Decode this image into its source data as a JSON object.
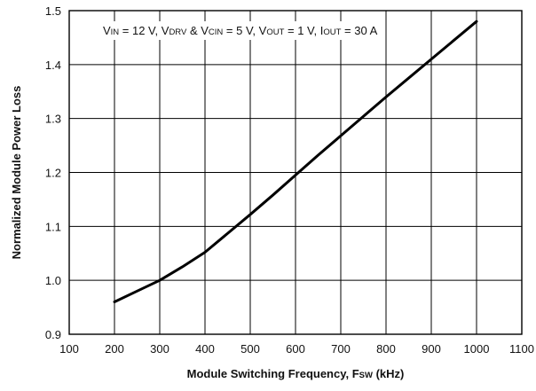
{
  "chart_data": {
    "type": "line",
    "title": "",
    "annotation": {
      "parts": [
        {
          "t": "V",
          "s": "main"
        },
        {
          "t": "IN",
          "s": "sub"
        },
        {
          "t": " = 12 V, ",
          "s": "main"
        },
        {
          "t": "V",
          "s": "main"
        },
        {
          "t": "DRV",
          "s": "sub"
        },
        {
          "t": " & ",
          "s": "main"
        },
        {
          "t": "V",
          "s": "main"
        },
        {
          "t": "CIN",
          "s": "sub"
        },
        {
          "t": " = 5 V, ",
          "s": "main"
        },
        {
          "t": "V",
          "s": "main"
        },
        {
          "t": "OUT",
          "s": "sub"
        },
        {
          "t": " = 1 V, ",
          "s": "main"
        },
        {
          "t": "I",
          "s": "main"
        },
        {
          "t": "OUT",
          "s": "sub"
        },
        {
          "t": " = 30 A",
          "s": "main"
        }
      ]
    },
    "xlabel": {
      "parts": [
        {
          "t": "Module Switching Frequency, F",
          "s": "main"
        },
        {
          "t": "SW",
          "s": "sub"
        },
        {
          "t": " (kHz)",
          "s": "main"
        }
      ]
    },
    "ylabel": "Normalized Module Power Loss",
    "xlim": [
      100,
      1100
    ],
    "ylim": [
      0.9,
      1.5
    ],
    "xticks": [
      100,
      200,
      300,
      400,
      500,
      600,
      700,
      800,
      900,
      1000,
      1100
    ],
    "yticks": [
      "0.9",
      "1.0",
      "1.1",
      "1.2",
      "1.3",
      "1.4",
      "1.5"
    ],
    "grid": true,
    "series": [
      {
        "color": "#000000",
        "x": [
          200,
          250,
          300,
          350,
          400,
          450,
          500,
          550,
          600,
          650,
          700,
          750,
          800,
          850,
          900,
          950,
          1000
        ],
        "y": [
          0.96,
          0.98,
          1.0,
          1.025,
          1.052,
          1.087,
          1.122,
          1.158,
          1.195,
          1.232,
          1.268,
          1.304,
          1.34,
          1.375,
          1.41,
          1.445,
          1.48
        ]
      }
    ]
  }
}
